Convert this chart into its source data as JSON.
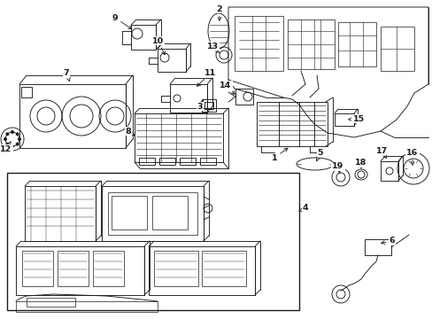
{
  "bg_color": "#ffffff",
  "line_color": "#1a1a1a",
  "fig_width": 4.89,
  "fig_height": 3.6,
  "dpi": 100,
  "lw": 0.65,
  "lw_heavy": 1.0
}
